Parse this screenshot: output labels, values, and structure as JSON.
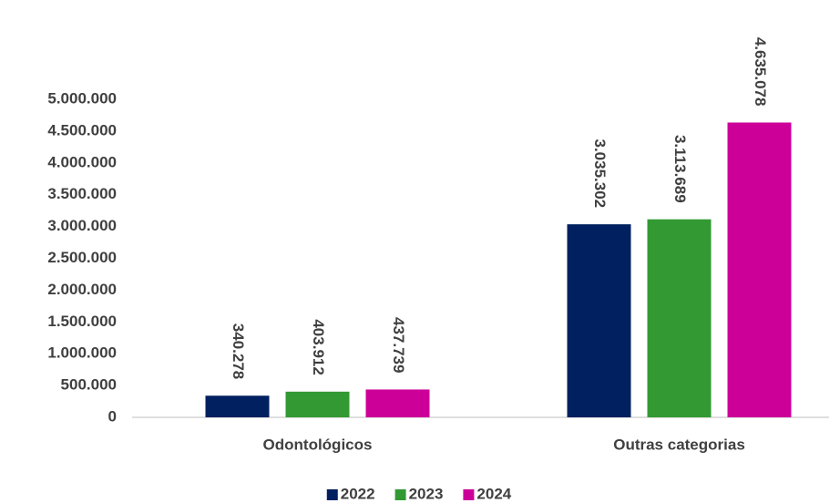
{
  "chart_data": {
    "type": "bar",
    "categories": [
      "Odontológicos",
      "Outras categorias"
    ],
    "series": [
      {
        "name": "2022",
        "color": "#002060",
        "values": [
          340278,
          3035302
        ],
        "value_labels": [
          "340.278",
          "3.035.302"
        ]
      },
      {
        "name": "2023",
        "color": "#339933",
        "values": [
          403912,
          3113689
        ],
        "value_labels": [
          "403.912",
          "3.113.689"
        ]
      },
      {
        "name": "2024",
        "color": "#cc0099",
        "values": [
          437739,
          4635078
        ],
        "value_labels": [
          "437.739",
          "4.635.078"
        ]
      }
    ],
    "ylim": [
      0,
      5000000
    ],
    "yticks": [
      0,
      {
        "value": 500000,
        "label": "500.000"
      },
      {
        "value": 1000000,
        "label": "1.000.000"
      },
      {
        "value": 1500000,
        "label": "1.500.000"
      },
      {
        "value": 2000000,
        "label": "2.000.000"
      },
      {
        "value": 2500000,
        "label": "2.500.000"
      },
      {
        "value": 3000000,
        "label": "3.000.000"
      },
      {
        "value": 3500000,
        "label": "3.500.000"
      },
      {
        "value": 4000000,
        "label": "4.000.000"
      },
      {
        "value": 4500000,
        "label": "4.500.000"
      },
      {
        "value": 5000000,
        "label": "5.000.000"
      }
    ],
    "grid": false,
    "legend": "bottom"
  }
}
